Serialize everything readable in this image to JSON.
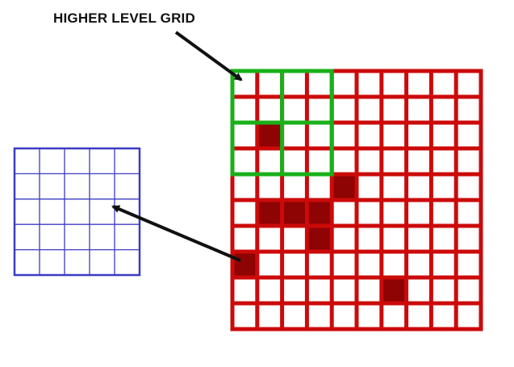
{
  "title_label": "HIGHER LEVEL GRID",
  "colors": {
    "red_grid": "#cc0a0a",
    "dark_cell": "#8e0303",
    "green_grid": "#19b01a",
    "blue_grid": "#3b3bc4",
    "arrow": "#111111"
  },
  "red_grid": {
    "rows": 10,
    "cols": 10,
    "dark_cells": [
      [
        2,
        1
      ],
      [
        4,
        4
      ],
      [
        5,
        1
      ],
      [
        5,
        2
      ],
      [
        5,
        3
      ],
      [
        6,
        3
      ],
      [
        7,
        0
      ],
      [
        8,
        6
      ]
    ]
  },
  "green_grid": {
    "rows": 2,
    "cols": 2,
    "cells_per_block": 2
  },
  "blue_grid": {
    "rows": 5,
    "cols": 5
  }
}
